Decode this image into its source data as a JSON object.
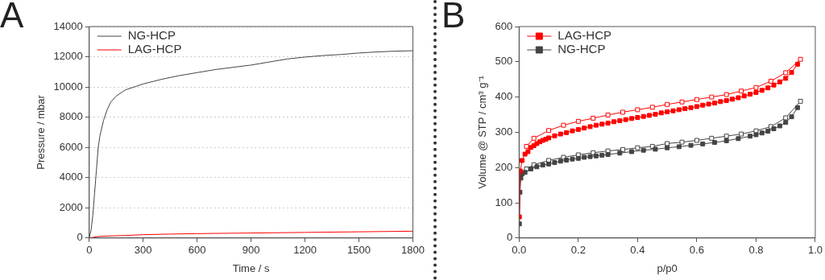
{
  "chart_data": [
    {
      "type": "line",
      "title": "A",
      "xlabel": "Time / s",
      "ylabel": "Pressure / mbar",
      "xlim": [
        0,
        1800
      ],
      "xticks": [
        0,
        300,
        600,
        900,
        1200,
        1500,
        1800
      ],
      "ylim": [
        0,
        14000
      ],
      "yticks": [
        0,
        2000,
        4000,
        6000,
        8000,
        10000,
        12000,
        14000
      ],
      "grid": "y",
      "legend": "top left",
      "marker": "none",
      "line_style": "solid",
      "series": [
        {
          "name": "NG-HCP",
          "color": "#444444",
          "x": [
            0,
            10,
            20,
            30,
            40,
            50,
            60,
            80,
            100,
            120,
            150,
            200,
            250,
            300,
            400,
            500,
            600,
            700,
            800,
            900,
            1000,
            1100,
            1200,
            1300,
            1400,
            1500,
            1600,
            1700,
            1800
          ],
          "values": [
            0,
            500,
            1500,
            3000,
            4500,
            6000,
            6800,
            7800,
            8500,
            9000,
            9400,
            9800,
            10000,
            10200,
            10500,
            10750,
            10950,
            11150,
            11300,
            11450,
            11650,
            11850,
            11980,
            12080,
            12150,
            12250,
            12320,
            12370,
            12400
          ]
        },
        {
          "name": "LAG-HCP",
          "color": "#ff0000",
          "x": [
            0,
            50,
            100,
            200,
            300,
            450,
            600,
            900,
            1200,
            1500,
            1800
          ],
          "values": [
            0,
            100,
            130,
            170,
            220,
            260,
            290,
            330,
            370,
            410,
            450
          ]
        }
      ]
    },
    {
      "type": "line",
      "title": "B",
      "xlabel": "p/p0",
      "ylabel": "Volume @ STP / cm³ g⁻¹",
      "xlim": [
        0,
        1
      ],
      "xticks": [
        {
          "value": 0,
          "label": "0.0"
        },
        {
          "value": 0.2,
          "label": "0.2"
        },
        {
          "value": 0.4,
          "label": "0.4"
        },
        {
          "value": 0.6,
          "label": "0.6"
        },
        {
          "value": 0.8,
          "label": "0.8"
        },
        {
          "value": 1,
          "label": "1.0"
        }
      ],
      "ylim": [
        0,
        600
      ],
      "yticks": [
        0,
        100,
        200,
        300,
        400,
        500,
        600
      ],
      "grid": false,
      "legend": "top left",
      "marker": "square",
      "line_style": "solid",
      "series": [
        {
          "name": "LAG-HCP",
          "color": "#ff0000",
          "x": [
            0.001,
            0.004,
            0.01,
            0.02,
            0.03,
            0.04,
            0.05,
            0.06,
            0.07,
            0.08,
            0.09,
            0.1,
            0.12,
            0.14,
            0.16,
            0.18,
            0.2,
            0.22,
            0.24,
            0.26,
            0.28,
            0.3,
            0.32,
            0.34,
            0.36,
            0.38,
            0.4,
            0.42,
            0.44,
            0.46,
            0.48,
            0.5,
            0.52,
            0.54,
            0.56,
            0.58,
            0.6,
            0.62,
            0.64,
            0.66,
            0.68,
            0.7,
            0.72,
            0.74,
            0.76,
            0.78,
            0.8,
            0.82,
            0.84,
            0.86,
            0.88,
            0.9,
            0.92,
            0.94
          ],
          "values": [
            60,
            190,
            220,
            238,
            245,
            257,
            262,
            268,
            273,
            277,
            280,
            284,
            290,
            295,
            299,
            304,
            308,
            312,
            316,
            320,
            323,
            326,
            330,
            333,
            336,
            339,
            342,
            345,
            348,
            351,
            355,
            358,
            361,
            364,
            367,
            370,
            373,
            377,
            380,
            383,
            387,
            390,
            394,
            398,
            403,
            408,
            413,
            419,
            426,
            434,
            443,
            453,
            470,
            493
          ]
        },
        {
          "color": "#ff0000",
          "x": [
            0.025,
            0.05,
            0.1,
            0.15,
            0.2,
            0.25,
            0.3,
            0.35,
            0.4,
            0.45,
            0.5,
            0.55,
            0.6,
            0.65,
            0.7,
            0.75,
            0.8,
            0.85,
            0.9,
            0.95
          ],
          "values": [
            260,
            283,
            305,
            320,
            331,
            340,
            349,
            357,
            364,
            371,
            379,
            386,
            393,
            400,
            407,
            417,
            427,
            445,
            469,
            507
          ]
        },
        {
          "name": "NG-HCP",
          "color": "#444444",
          "x": [
            0.001,
            0.003,
            0.006,
            0.01,
            0.02,
            0.04,
            0.06,
            0.08,
            0.1,
            0.12,
            0.14,
            0.16,
            0.18,
            0.2,
            0.22,
            0.24,
            0.26,
            0.28,
            0.3,
            0.34,
            0.38,
            0.42,
            0.46,
            0.5,
            0.54,
            0.58,
            0.62,
            0.66,
            0.7,
            0.74,
            0.78,
            0.8,
            0.82,
            0.84,
            0.86,
            0.88,
            0.9,
            0.92,
            0.94
          ],
          "values": [
            40,
            130,
            170,
            182,
            186,
            196,
            202,
            207,
            210,
            214,
            218,
            221,
            224,
            226,
            229,
            231,
            233,
            235,
            237,
            241,
            245,
            249,
            252,
            256,
            259,
            263,
            267,
            271,
            276,
            282,
            289,
            293,
            298,
            303,
            310,
            318,
            328,
            344,
            370
          ]
        },
        {
          "color": "#444444",
          "x": [
            0.025,
            0.05,
            0.1,
            0.15,
            0.2,
            0.25,
            0.3,
            0.35,
            0.4,
            0.45,
            0.5,
            0.55,
            0.6,
            0.65,
            0.7,
            0.75,
            0.8,
            0.85,
            0.9,
            0.95
          ],
          "values": [
            196,
            208,
            220,
            229,
            236,
            242,
            247,
            251,
            256,
            260,
            268,
            272,
            277,
            283,
            289,
            295,
            304,
            316,
            341,
            388
          ]
        }
      ]
    }
  ]
}
